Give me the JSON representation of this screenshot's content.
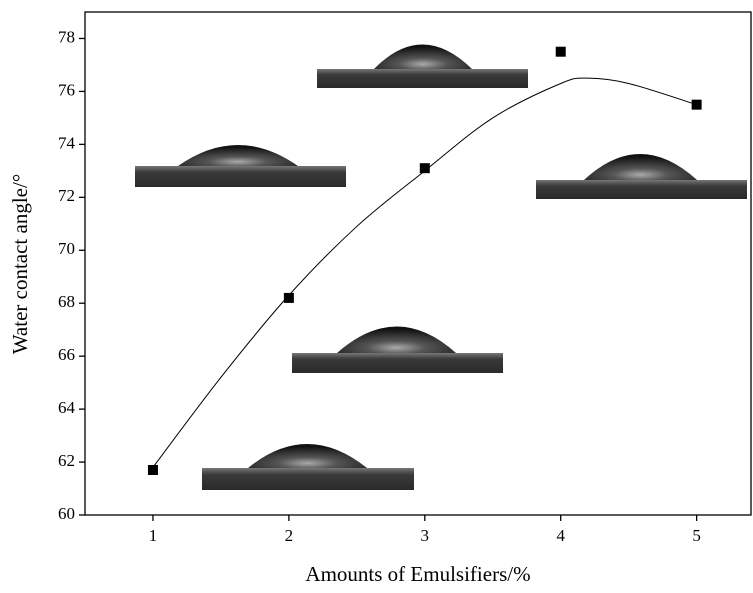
{
  "chart_data": {
    "type": "scatter",
    "x_label": "Amounts of Emulsifiers/%",
    "y_label": "Water contact angle/°",
    "series": [
      {
        "x": [
          1,
          2,
          3,
          4,
          5
        ],
        "values": [
          61.7,
          68.2,
          73.1,
          77.5,
          75.5
        ],
        "color": "#000000"
      }
    ],
    "fit": {
      "x": [
        1,
        1.5,
        2,
        2.5,
        3,
        3.5,
        4,
        4.2,
        4.5,
        5
      ],
      "values": [
        61.8,
        65.2,
        68.3,
        70.9,
        73.0,
        75.0,
        76.3,
        76.5,
        76.3,
        75.5
      ],
      "color": "#000000"
    },
    "xlim": [
      0.5,
      5.4
    ],
    "ylim": [
      60,
      79
    ],
    "xticks": [
      1,
      2,
      3,
      4,
      5
    ],
    "yticks": [
      60,
      62,
      64,
      66,
      68,
      70,
      72,
      74,
      76,
      78
    ]
  }
}
